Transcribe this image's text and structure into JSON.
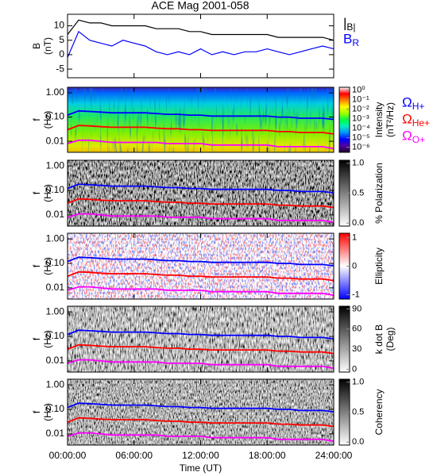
{
  "title": "ACE Mag 2001-058",
  "chart_data": [
    {
      "type": "line",
      "ylabel": [
        "B",
        "(nT)"
      ],
      "xlim": [
        0,
        24
      ],
      "ylim": [
        -8,
        14
      ],
      "yticks": [
        -5,
        0,
        5,
        10
      ],
      "x": [
        0,
        1,
        2,
        3,
        4,
        5,
        6,
        7,
        8,
        9,
        10,
        11,
        12,
        13,
        14,
        15,
        16,
        17,
        18,
        19,
        20,
        21,
        22,
        23,
        24
      ],
      "series": [
        {
          "name": "|B|",
          "color": "#000000",
          "values": [
            7,
            12,
            11,
            11,
            10,
            10,
            10,
            10,
            9,
            9,
            9,
            8,
            8,
            7,
            7,
            7,
            7,
            7,
            7,
            6,
            6,
            6,
            6,
            6,
            5
          ]
        },
        {
          "name": "BR",
          "color": "#0000ff",
          "values": [
            -1,
            8,
            5,
            4,
            3,
            5,
            4,
            3,
            1,
            0,
            1,
            0,
            2,
            0,
            1,
            0,
            1,
            1,
            2,
            1,
            0,
            1,
            2,
            3,
            2
          ]
        }
      ]
    },
    {
      "type": "spectrogram",
      "ylabel": [
        "f",
        "(Hz)"
      ],
      "ylog": true,
      "xlim": [
        0,
        24
      ],
      "ylim": [
        0.0035,
        1.7
      ],
      "yticks": [
        {
          "value": 1,
          "label": "1.00"
        },
        {
          "value": 0.1,
          "label": "0.10"
        },
        0.01
      ],
      "x": [
        0,
        1,
        2,
        3,
        4,
        5,
        6,
        7,
        8,
        9,
        10,
        11,
        12,
        13,
        14,
        15,
        16,
        17,
        18,
        19,
        20,
        21,
        22,
        23,
        24
      ],
      "series": [
        {
          "name": "ΩH+",
          "color": "#0000ff",
          "values": [
            0.12,
            0.18,
            0.17,
            0.16,
            0.15,
            0.15,
            0.15,
            0.15,
            0.14,
            0.13,
            0.13,
            0.12,
            0.12,
            0.11,
            0.11,
            0.11,
            0.11,
            0.11,
            0.11,
            0.1,
            0.1,
            0.09,
            0.09,
            0.09,
            0.08
          ]
        },
        {
          "name": "ΩHe+",
          "color": "#ff0000",
          "values": [
            0.03,
            0.045,
            0.043,
            0.04,
            0.038,
            0.038,
            0.038,
            0.038,
            0.035,
            0.033,
            0.033,
            0.03,
            0.03,
            0.028,
            0.028,
            0.028,
            0.028,
            0.028,
            0.028,
            0.025,
            0.025,
            0.023,
            0.023,
            0.023,
            0.02
          ]
        },
        {
          "name": "ΩO+",
          "color": "#ff00ff",
          "values": [
            0.008,
            0.011,
            0.011,
            0.01,
            0.009,
            0.009,
            0.009,
            0.009,
            0.009,
            0.008,
            0.008,
            0.008,
            0.008,
            0.007,
            0.007,
            0.007,
            0.007,
            0.007,
            0.007,
            0.006,
            0.006,
            0.006,
            0.006,
            0.006,
            0.005
          ]
        }
      ],
      "colorbar": {
        "label": [
          "Intensity",
          "(nT²/Hz)"
        ],
        "log": true,
        "clim": [
          3e-07,
          2
        ],
        "ticks": [
          {
            "value": 1,
            "label": "10⁰"
          },
          {
            "value": 0.1,
            "label": "10⁻¹"
          },
          {
            "value": 0.01,
            "label": "10⁻²"
          },
          {
            "value": 0.001,
            "label": "10⁻³"
          },
          {
            "value": 0.0001,
            "label": "10⁻⁴"
          },
          {
            "value": 1e-05,
            "label": "10⁻⁵"
          },
          {
            "value": 1e-06,
            "label": "10⁻⁶"
          }
        ],
        "colormap": [
          "#200030",
          "#5000a0",
          "#0000ff",
          "#0090ff",
          "#00f0c0",
          "#00ff40",
          "#a0ff00",
          "#ffff00",
          "#ff8000",
          "#ff0000",
          "#ffffff"
        ]
      }
    },
    {
      "type": "spectrogram",
      "ylabel": [
        "f",
        "(Hz)"
      ],
      "ylog": true,
      "xlim": [
        0,
        24
      ],
      "ylim": [
        0.0035,
        1.7
      ],
      "yticks": [
        {
          "value": 1,
          "label": "1.00"
        },
        {
          "value": 0.1,
          "label": "0.10"
        },
        0.01
      ],
      "colorbar": {
        "label": [
          "% Polarization"
        ],
        "clim": [
          -0.05,
          1.05
        ],
        "ticks": [
          {
            "value": 0,
            "label": "0.0"
          },
          0.5,
          {
            "value": 1,
            "label": "1.0"
          }
        ],
        "colormap": [
          "#ffffff",
          "#000000"
        ]
      }
    },
    {
      "type": "spectrogram",
      "ylabel": [
        "f",
        "(Hz)"
      ],
      "ylog": true,
      "xlim": [
        0,
        24
      ],
      "ylim": [
        0.0035,
        1.7
      ],
      "yticks": [
        {
          "value": 1,
          "label": "1.00"
        },
        {
          "value": 0.1,
          "label": "0.10"
        },
        0.01
      ],
      "colorbar": {
        "label": [
          "Ellipticity"
        ],
        "clim": [
          -1.15,
          1.15
        ],
        "ticks": [
          -1,
          0,
          1
        ],
        "colormap": [
          "#0000ff",
          "#ffffff",
          "#ff0000"
        ]
      }
    },
    {
      "type": "spectrogram",
      "ylabel": [
        "f",
        "(Hz)"
      ],
      "ylog": true,
      "xlim": [
        0,
        24
      ],
      "ylim": [
        0.0035,
        1.7
      ],
      "yticks": [
        {
          "value": 1,
          "label": "1.00"
        },
        {
          "value": 0.1,
          "label": "0.10"
        },
        0.01
      ],
      "colorbar": {
        "label": [
          "k dot B",
          "(Deg)"
        ],
        "clim": [
          -4,
          94
        ],
        "ticks": [
          0,
          30,
          60,
          90
        ],
        "colormap": [
          "#ffffff",
          "#000000"
        ]
      }
    },
    {
      "type": "spectrogram",
      "ylabel": [
        "f",
        "(Hz)"
      ],
      "ylog": true,
      "xlim": [
        0,
        24
      ],
      "ylim": [
        0.0035,
        1.7
      ],
      "yticks": [
        {
          "value": 1,
          "label": "1.00"
        },
        {
          "value": 0.1,
          "label": "0.10"
        },
        0.01
      ],
      "colorbar": {
        "label": [
          "Coherency"
        ],
        "clim": [
          -0.05,
          1.05
        ],
        "ticks": [
          {
            "value": 0,
            "label": "0.0"
          },
          0.5,
          {
            "value": 1,
            "label": "1.0"
          }
        ],
        "colormap": [
          "#ffffff",
          "#000000"
        ]
      },
      "xlabel": "Time (UT)",
      "xticks": [
        {
          "value": 0,
          "label": "00:00:00"
        },
        {
          "value": 6,
          "label": "06:00:00"
        },
        {
          "value": 12,
          "label": "12:00:00"
        },
        {
          "value": 18,
          "label": "18:00:00"
        },
        {
          "value": 24,
          "label": "24:00:00"
        }
      ]
    }
  ]
}
